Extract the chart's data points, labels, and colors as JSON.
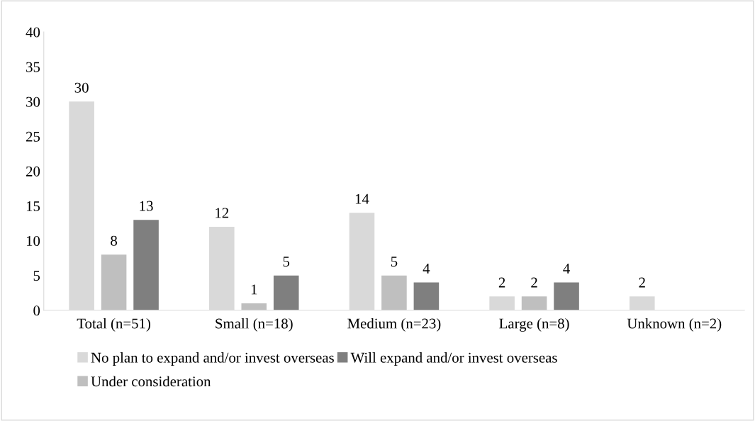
{
  "chart_data": {
    "type": "bar",
    "categories": [
      "Total (n=51)",
      "Small (n=18)",
      "Medium (n=23)",
      "Large (n=8)",
      "Unknown (n=2)"
    ],
    "series": [
      {
        "name": "No plan to expand and/or invest overseas",
        "color": "#d9d9d9",
        "values": [
          30,
          12,
          14,
          2,
          2
        ]
      },
      {
        "name": "Under consideration",
        "color": "#bfbfbf",
        "values": [
          8,
          1,
          5,
          2,
          null
        ]
      },
      {
        "name": "Will expand and/or invest overseas",
        "color": "#7f7f7f",
        "values": [
          13,
          5,
          4,
          4,
          null
        ]
      }
    ],
    "ylim": [
      0,
      40
    ],
    "yticks": [
      0,
      5,
      10,
      15,
      20,
      25,
      30,
      35,
      40
    ],
    "grid": false,
    "legend": "bottom",
    "data_labels": true
  }
}
